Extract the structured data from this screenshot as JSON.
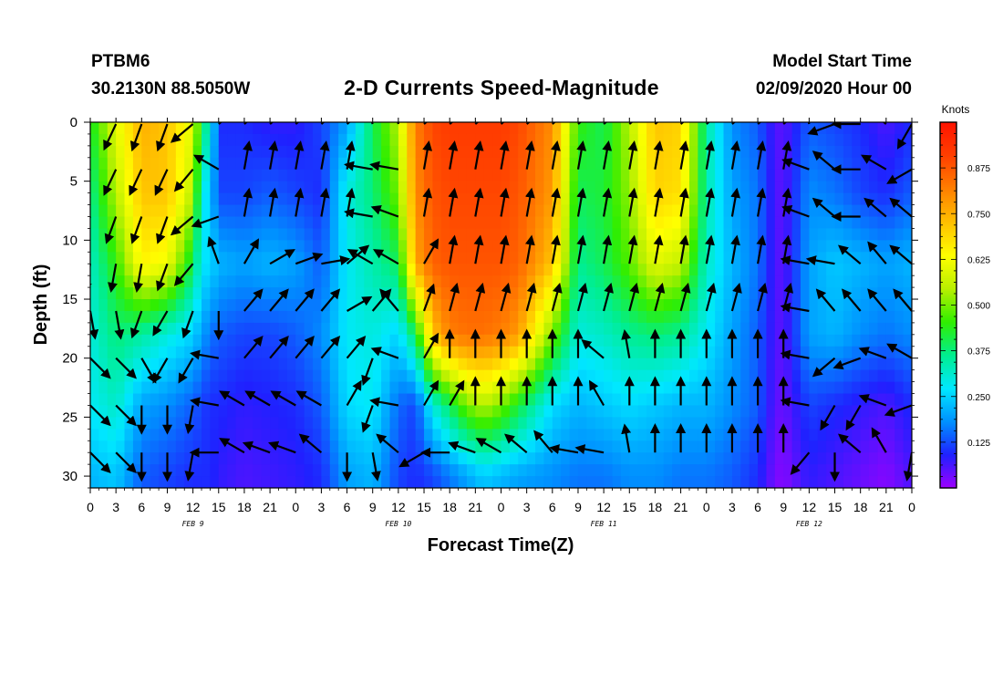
{
  "header": {
    "station": "PTBM6",
    "coords": "30.2130N 88.5050W",
    "title": "2-D Currents Speed-Magnitude",
    "model_start_label": "Model Start Time",
    "model_start_value": "02/09/2020 Hour 00"
  },
  "colors": {
    "scale": [
      "#a000ff",
      "#2020ff",
      "#0090ff",
      "#00e8ff",
      "#00ee90",
      "#30ee00",
      "#b8f000",
      "#ffff00",
      "#ffc000",
      "#ff8000",
      "#ff4000",
      "#ff1400"
    ]
  },
  "chart_data": {
    "type": "heatmap",
    "title": "2-D Currents Speed-Magnitude",
    "xlabel": "Forecast Time(Z)",
    "ylabel": "Depth (ft)",
    "x_tick_labels": [
      "0",
      "3",
      "6",
      "9",
      "12",
      "15",
      "18",
      "21",
      "0",
      "3",
      "6",
      "9",
      "12",
      "15",
      "18",
      "21",
      "0",
      "3",
      "6",
      "9",
      "12",
      "15",
      "18",
      "21",
      "0",
      "3",
      "6",
      "9",
      "12",
      "15",
      "18",
      "21",
      "0"
    ],
    "day_labels": [
      {
        "label": "FEB 9",
        "hour": 12
      },
      {
        "label": "FEB 10",
        "hour": 36
      },
      {
        "label": "FEB 11",
        "hour": 60
      },
      {
        "label": "FEB 12",
        "hour": 84
      }
    ],
    "xlim": [
      0,
      96
    ],
    "ylim": [
      31,
      0
    ],
    "y_ticks": [
      0,
      5,
      10,
      15,
      20,
      25,
      30
    ],
    "colorbar": {
      "unit": "Knots",
      "range": [
        0,
        1.0
      ],
      "tick_labels": [
        "0.125",
        "0.250",
        "0.375",
        "0.500",
        "0.625",
        "0.750",
        "0.875"
      ],
      "tick_values": [
        0.125,
        0.25,
        0.375,
        0.5,
        0.625,
        0.75,
        0.875
      ]
    },
    "speed_profile_hours": [
      0,
      3,
      6,
      9,
      12,
      13,
      14,
      15,
      18,
      21,
      24,
      27,
      30,
      33,
      36,
      38,
      40,
      42,
      44,
      46,
      48,
      50,
      54,
      57,
      60,
      63,
      66,
      69,
      72,
      75,
      78,
      80,
      81,
      84,
      87,
      90,
      93,
      96
    ],
    "speed_depths_ft": [
      0,
      6,
      12,
      18,
      24,
      30
    ],
    "speed_knots": [
      [
        0.42,
        0.36,
        0.32,
        0.3,
        0.28,
        0.22
      ],
      [
        0.6,
        0.55,
        0.45,
        0.38,
        0.32,
        0.24
      ],
      [
        0.75,
        0.72,
        0.65,
        0.35,
        0.2,
        0.14
      ],
      [
        0.72,
        0.72,
        0.62,
        0.3,
        0.18,
        0.12
      ],
      [
        0.6,
        0.55,
        0.4,
        0.25,
        0.14,
        0.1
      ],
      [
        0.4,
        0.3,
        0.28,
        0.2,
        0.12,
        0.1
      ],
      [
        0.32,
        0.24,
        0.26,
        0.16,
        0.1,
        0.1
      ],
      [
        0.1,
        0.12,
        0.22,
        0.14,
        0.1,
        0.08
      ],
      [
        0.1,
        0.12,
        0.2,
        0.12,
        0.08,
        0.06
      ],
      [
        0.08,
        0.14,
        0.22,
        0.12,
        0.09,
        0.07
      ],
      [
        0.08,
        0.12,
        0.2,
        0.14,
        0.1,
        0.08
      ],
      [
        0.12,
        0.1,
        0.14,
        0.18,
        0.14,
        0.1
      ],
      [
        0.2,
        0.3,
        0.28,
        0.28,
        0.26,
        0.2
      ],
      [
        0.4,
        0.38,
        0.34,
        0.3,
        0.28,
        0.22
      ],
      [
        0.55,
        0.5,
        0.4,
        0.25,
        0.15,
        0.12
      ],
      [
        0.82,
        0.8,
        0.76,
        0.4,
        0.12,
        0.1
      ],
      [
        0.9,
        0.88,
        0.86,
        0.72,
        0.3,
        0.12
      ],
      [
        0.92,
        0.9,
        0.88,
        0.82,
        0.4,
        0.16
      ],
      [
        0.92,
        0.9,
        0.88,
        0.84,
        0.5,
        0.2
      ],
      [
        0.92,
        0.9,
        0.88,
        0.84,
        0.55,
        0.24
      ],
      [
        0.92,
        0.9,
        0.88,
        0.82,
        0.5,
        0.22
      ],
      [
        0.9,
        0.88,
        0.86,
        0.78,
        0.42,
        0.2
      ],
      [
        0.8,
        0.78,
        0.72,
        0.5,
        0.26,
        0.18
      ],
      [
        0.45,
        0.4,
        0.36,
        0.3,
        0.22,
        0.16
      ],
      [
        0.4,
        0.42,
        0.4,
        0.32,
        0.24,
        0.16
      ],
      [
        0.55,
        0.52,
        0.48,
        0.36,
        0.26,
        0.18
      ],
      [
        0.72,
        0.7,
        0.6,
        0.38,
        0.24,
        0.18
      ],
      [
        0.7,
        0.68,
        0.56,
        0.36,
        0.22,
        0.16
      ],
      [
        0.35,
        0.34,
        0.32,
        0.28,
        0.22,
        0.16
      ],
      [
        0.18,
        0.2,
        0.22,
        0.2,
        0.18,
        0.14
      ],
      [
        0.14,
        0.16,
        0.16,
        0.14,
        0.14,
        0.1
      ],
      [
        0.06,
        0.06,
        0.06,
        0.06,
        0.05,
        0.03
      ],
      [
        0.05,
        0.05,
        0.05,
        0.05,
        0.04,
        0.02
      ],
      [
        0.14,
        0.18,
        0.2,
        0.2,
        0.12,
        0.08
      ],
      [
        0.12,
        0.16,
        0.24,
        0.22,
        0.1,
        0.06
      ],
      [
        0.1,
        0.12,
        0.22,
        0.18,
        0.08,
        0.04
      ],
      [
        0.06,
        0.1,
        0.2,
        0.16,
        0.06,
        0.02
      ],
      [
        0.1,
        0.14,
        0.22,
        0.18,
        0.1,
        0.06
      ]
    ],
    "vector_depths_ft": [
      0,
      4,
      8,
      12,
      16,
      20,
      24,
      28
    ],
    "vector_hours": [
      0,
      3,
      6,
      9,
      12,
      15,
      18,
      21,
      24,
      27,
      30,
      33,
      36,
      39,
      42,
      45,
      48,
      51,
      54,
      57,
      60,
      63,
      66,
      69,
      72,
      75,
      78,
      81,
      84,
      87,
      90,
      93,
      96
    ],
    "vector_direction_deg": [
      [
        120,
        115,
        110,
        110,
        140,
        -40,
        -40,
        -40,
        -40,
        -40,
        -40,
        -110,
        -100,
        -40,
        -40,
        -40,
        -40,
        -40,
        -40,
        -40,
        -40,
        -40,
        -40,
        -40,
        -40,
        -40,
        -40,
        -40,
        -100,
        160,
        180,
        -140,
        120
      ],
      [
        120,
        115,
        115,
        115,
        130,
        -150,
        -80,
        -80,
        -80,
        -80,
        -80,
        -170,
        -170,
        -80,
        -80,
        -80,
        -80,
        -80,
        -80,
        -80,
        -80,
        -80,
        -80,
        -80,
        -80,
        -80,
        -80,
        -80,
        -160,
        -140,
        180,
        -150,
        150
      ],
      [
        110,
        110,
        110,
        110,
        140,
        160,
        -80,
        -80,
        -80,
        -80,
        -80,
        -170,
        -160,
        -80,
        -80,
        -80,
        -80,
        -80,
        -80,
        -80,
        -80,
        -80,
        -80,
        -80,
        -80,
        -80,
        -80,
        -80,
        -160,
        -140,
        180,
        -140,
        -140
      ],
      [
        100,
        100,
        100,
        110,
        130,
        -110,
        -60,
        -30,
        -20,
        -10,
        -40,
        -150,
        -150,
        -60,
        -80,
        -80,
        -80,
        -80,
        -80,
        -80,
        -80,
        -80,
        -80,
        -80,
        -80,
        -80,
        -80,
        -80,
        -170,
        -170,
        -140,
        -130,
        -140
      ],
      [
        80,
        80,
        110,
        120,
        110,
        90,
        -50,
        -50,
        -50,
        -50,
        -30,
        -50,
        -130,
        -70,
        -75,
        -75,
        -75,
        -75,
        -75,
        -75,
        -75,
        -75,
        -75,
        -75,
        -75,
        -75,
        -75,
        -75,
        -170,
        -130,
        -130,
        -130,
        -130
      ],
      [
        45,
        45,
        60,
        120,
        120,
        -170,
        -50,
        -50,
        -50,
        -50,
        -50,
        110,
        -160,
        -60,
        -90,
        -90,
        -90,
        -90,
        -90,
        -90,
        -140,
        -100,
        -90,
        -90,
        -90,
        -90,
        -90,
        -90,
        -170,
        140,
        160,
        -160,
        -150
      ],
      [
        45,
        45,
        90,
        90,
        100,
        -170,
        -150,
        -150,
        -150,
        -150,
        -60,
        110,
        -170,
        -60,
        -60,
        -90,
        -90,
        -90,
        -90,
        -90,
        -120,
        -90,
        -90,
        -90,
        -90,
        -90,
        -90,
        -90,
        -170,
        120,
        120,
        -160,
        160
      ],
      [
        45,
        45,
        90,
        90,
        100,
        -180,
        -150,
        -160,
        -160,
        -140,
        90,
        80,
        -140,
        150,
        -180,
        -160,
        -150,
        -140,
        -130,
        -170,
        -170,
        -100,
        -90,
        -90,
        -90,
        -90,
        -90,
        -90,
        130,
        90,
        -140,
        -120,
        100
      ]
    ]
  }
}
